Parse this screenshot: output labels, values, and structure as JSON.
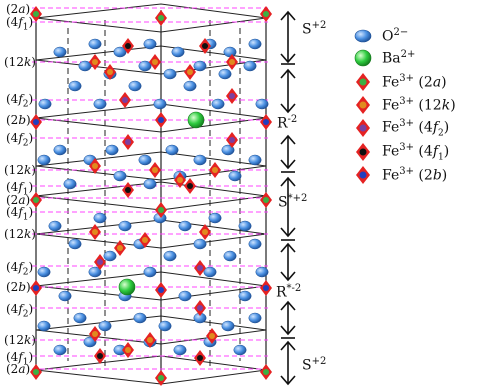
{
  "colors": {
    "oxygen": "#4a90e2",
    "barium": "#2ecc40",
    "fe_2a": "#3cb043",
    "fe_12k": "#e08a1e",
    "fe_4f2": "#7b3fa0",
    "fe_4f1": "#111111",
    "fe_2b": "#1f3fbf",
    "arrow_red": "#e52222",
    "level_line": "#ff44ff"
  },
  "layer_labels": [
    {
      "text": "(2a)"
    },
    {
      "text": "(4f1)"
    },
    {
      "text": "(12k)"
    },
    {
      "text": "(4f2)"
    },
    {
      "text": "(2b)"
    },
    {
      "text": "(4f2)"
    },
    {
      "text": "(12k)"
    },
    {
      "text": "(4f1)"
    },
    {
      "text": "(2a)"
    },
    {
      "text": "(4f1)"
    },
    {
      "text": "(12k)"
    },
    {
      "text": "(4f2)"
    },
    {
      "text": "(2b)"
    },
    {
      "text": "(4f2)"
    },
    {
      "text": "(12k)"
    },
    {
      "text": "(4f1)"
    },
    {
      "text": "(2a)"
    }
  ],
  "blocks": [
    {
      "label": "S+2"
    },
    {
      "label": "R-2"
    },
    {
      "label": "S*+2"
    },
    {
      "label": "R*-2"
    },
    {
      "label": "S+2"
    }
  ],
  "legend": [
    {
      "icon": "oxygen-sphere-icon",
      "label": "O2-"
    },
    {
      "icon": "barium-sphere-icon",
      "label": "Ba2+"
    },
    {
      "icon": "fe-2a-icon",
      "label": "Fe3+ (2a)"
    },
    {
      "icon": "fe-12k-icon",
      "label": "Fe3+ (12k)"
    },
    {
      "icon": "fe-4f2-icon",
      "label": "Fe3+ (4f2)"
    },
    {
      "icon": "fe-4f1-icon",
      "label": "Fe3+ (4f1)"
    },
    {
      "icon": "fe-2b-icon",
      "label": "Fe3+ (2b)"
    }
  ]
}
